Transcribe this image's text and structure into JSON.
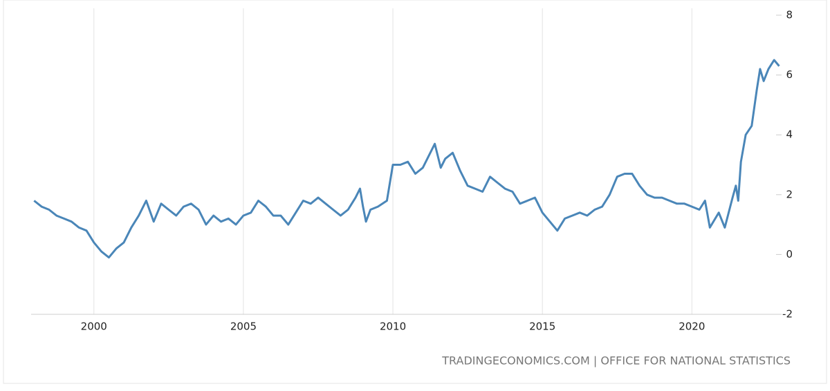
{
  "chart_data": {
    "type": "line",
    "source": "TRADINGECONOMICS.COM | OFFICE FOR NATIONAL STATISTICS",
    "x": [
      1998.0,
      1998.25,
      1998.5,
      1998.75,
      1999.0,
      1999.25,
      1999.5,
      1999.75,
      2000.0,
      2000.25,
      2000.5,
      2000.75,
      2001.0,
      2001.25,
      2001.5,
      2001.75,
      2002.0,
      2002.25,
      2002.5,
      2002.75,
      2003.0,
      2003.25,
      2003.5,
      2003.75,
      2004.0,
      2004.25,
      2004.5,
      2004.75,
      2005.0,
      2005.25,
      2005.5,
      2005.75,
      2006.0,
      2006.25,
      2006.5,
      2006.75,
      2007.0,
      2007.25,
      2007.5,
      2007.75,
      2008.0,
      2008.25,
      2008.5,
      2008.75,
      2008.9,
      2009.0,
      2009.1,
      2009.25,
      2009.5,
      2009.8,
      2010.0,
      2010.25,
      2010.5,
      2010.75,
      2011.0,
      2011.25,
      2011.4,
      2011.6,
      2011.75,
      2012.0,
      2012.25,
      2012.5,
      2012.75,
      2013.0,
      2013.25,
      2013.5,
      2013.75,
      2014.0,
      2014.25,
      2014.5,
      2014.75,
      2015.0,
      2015.25,
      2015.5,
      2015.75,
      2016.0,
      2016.25,
      2016.5,
      2016.75,
      2017.0,
      2017.25,
      2017.5,
      2017.75,
      2018.0,
      2018.25,
      2018.5,
      2018.75,
      2019.0,
      2019.25,
      2019.5,
      2019.75,
      2020.0,
      2020.25,
      2020.44,
      2020.6,
      2020.9,
      2021.1,
      2021.36,
      2021.47,
      2021.55,
      2021.64,
      2021.8,
      2022.0,
      2022.17,
      2022.28,
      2022.4,
      2022.56,
      2022.75,
      2022.92
    ],
    "values": [
      1.8,
      1.6,
      1.5,
      1.3,
      1.2,
      1.1,
      0.9,
      0.8,
      0.4,
      0.1,
      -0.1,
      0.2,
      0.4,
      0.9,
      1.3,
      1.8,
      1.1,
      1.7,
      1.5,
      1.3,
      1.6,
      1.7,
      1.5,
      1.0,
      1.3,
      1.1,
      1.2,
      1.0,
      1.3,
      1.4,
      1.8,
      1.6,
      1.3,
      1.3,
      1.0,
      1.4,
      1.8,
      1.7,
      1.9,
      1.7,
      1.5,
      1.3,
      1.5,
      1.9,
      2.2,
      1.6,
      1.1,
      1.5,
      1.6,
      1.8,
      3.0,
      3.0,
      3.1,
      2.7,
      2.9,
      3.4,
      3.7,
      2.9,
      3.2,
      3.4,
      2.8,
      2.3,
      2.2,
      2.1,
      2.6,
      2.4,
      2.2,
      2.1,
      1.7,
      1.8,
      1.9,
      1.4,
      1.1,
      0.8,
      1.2,
      1.3,
      1.4,
      1.3,
      1.5,
      1.6,
      2.0,
      2.6,
      2.7,
      2.7,
      2.3,
      2.0,
      1.9,
      1.9,
      1.8,
      1.7,
      1.7,
      1.6,
      1.5,
      1.8,
      0.9,
      1.4,
      0.9,
      1.9,
      2.3,
      1.8,
      3.1,
      4.0,
      4.3,
      5.5,
      6.2,
      5.8,
      6.2,
      6.5,
      6.3
    ],
    "color": "#4a86b8",
    "xlim": [
      1997.9,
      2023.0
    ],
    "xticks": [
      2000,
      2005,
      2010,
      2015,
      2020
    ],
    "ylim": [
      -2,
      8
    ],
    "yticks": [
      -2,
      0,
      2,
      4,
      6,
      8
    ],
    "grid": true
  }
}
